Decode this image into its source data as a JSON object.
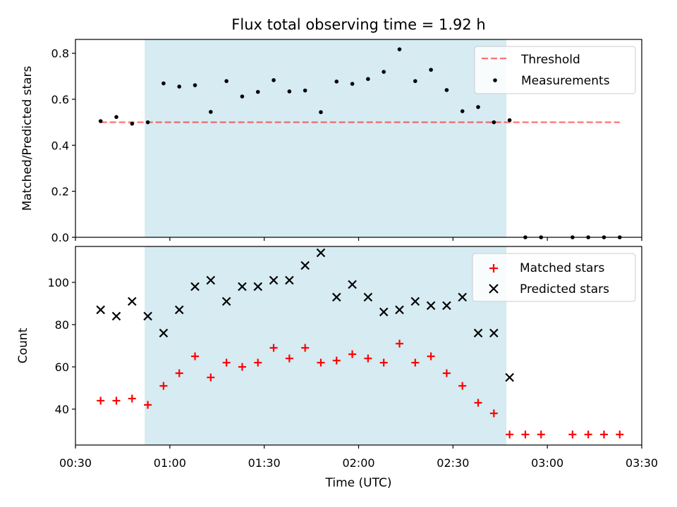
{
  "chart_data": [
    {
      "type": "scatter",
      "title": "Flux total observing time = 1.92 h",
      "ylabel": "Matched/Predicted stars",
      "xlabel": "",
      "xlim": [
        "00:30",
        "03:30"
      ],
      "ylim": [
        0,
        0.86
      ],
      "x_ticks": [
        "00:30",
        "01:00",
        "01:30",
        "02:00",
        "02:30",
        "03:00",
        "03:30"
      ],
      "y_ticks": [
        "0.0",
        "0.2",
        "0.4",
        "0.6",
        "0.8"
      ],
      "shaded_span": [
        "00:52",
        "02:47"
      ],
      "threshold": {
        "value": 0.5,
        "x": [
          "00:38",
          "03:23"
        ]
      },
      "legend": {
        "location": "top-right",
        "entries": [
          "Threshold",
          "Measurements"
        ]
      },
      "series": [
        {
          "name": "Measurements",
          "x": [
            "00:38",
            "00:43",
            "00:48",
            "00:53",
            "00:58",
            "01:03",
            "01:08",
            "01:13",
            "01:18",
            "01:23",
            "01:28",
            "01:33",
            "01:38",
            "01:43",
            "01:48",
            "01:53",
            "01:58",
            "02:03",
            "02:08",
            "02:13",
            "02:18",
            "02:23",
            "02:28",
            "02:33",
            "02:38",
            "02:43",
            "02:48",
            "02:53",
            "02:58",
            "03:03",
            "03:08",
            "03:13",
            "03:18",
            "03:23"
          ],
          "y": [
            0.505,
            0.523,
            0.494,
            0.5,
            0.669,
            0.655,
            0.661,
            0.545,
            0.679,
            0.612,
            0.632,
            0.683,
            0.634,
            0.638,
            0.544,
            0.677,
            0.667,
            0.688,
            0.719,
            0.817,
            0.679,
            0.728,
            0.64,
            0.548,
            0.566,
            0.5,
            0.509,
            0.0,
            0.0,
            null,
            0.0,
            0.0,
            0.0,
            0.0
          ]
        }
      ]
    },
    {
      "type": "scatter",
      "title": "",
      "xlabel": "Time (UTC)",
      "ylabel": "Count",
      "xlim": [
        "00:30",
        "03:30"
      ],
      "ylim": [
        23,
        117
      ],
      "x_ticks": [
        "00:30",
        "01:00",
        "01:30",
        "02:00",
        "02:30",
        "03:00",
        "03:30"
      ],
      "y_ticks": [
        "40",
        "60",
        "80",
        "100"
      ],
      "shaded_span": [
        "00:52",
        "02:47"
      ],
      "legend": {
        "location": "top-right",
        "entries": [
          "Matched stars",
          "Predicted stars"
        ]
      },
      "series": [
        {
          "name": "Matched stars",
          "color": "#ff0000",
          "marker": "plus",
          "x": [
            "00:38",
            "00:43",
            "00:48",
            "00:53",
            "00:58",
            "01:03",
            "01:08",
            "01:13",
            "01:18",
            "01:23",
            "01:28",
            "01:33",
            "01:38",
            "01:43",
            "01:48",
            "01:53",
            "01:58",
            "02:03",
            "02:08",
            "02:13",
            "02:18",
            "02:23",
            "02:28",
            "02:33",
            "02:38",
            "02:43",
            "02:48",
            "02:53",
            "02:58",
            "03:08",
            "03:13",
            "03:18",
            "03:23"
          ],
          "y": [
            44,
            44,
            45,
            42,
            51,
            57,
            65,
            55,
            62,
            60,
            62,
            69,
            64,
            69,
            62,
            63,
            66,
            64,
            62,
            71,
            62,
            65,
            57,
            51,
            43,
            38,
            28,
            28,
            28,
            28,
            28,
            28,
            28
          ]
        },
        {
          "name": "Predicted stars",
          "color": "#000000",
          "marker": "x",
          "x": [
            "00:38",
            "00:43",
            "00:48",
            "00:53",
            "00:58",
            "01:03",
            "01:08",
            "01:13",
            "01:18",
            "01:23",
            "01:28",
            "01:33",
            "01:38",
            "01:43",
            "01:48",
            "01:53",
            "01:58",
            "02:03",
            "02:08",
            "02:13",
            "02:18",
            "02:23",
            "02:28",
            "02:33",
            "02:38",
            "02:43",
            "02:48"
          ],
          "y": [
            87,
            84,
            91,
            84,
            76,
            87,
            98,
            101,
            91,
            98,
            98,
            101,
            101,
            108,
            114,
            93,
            99,
            93,
            86,
            87,
            91,
            89,
            89,
            93,
            76,
            76,
            55
          ]
        }
      ]
    }
  ]
}
